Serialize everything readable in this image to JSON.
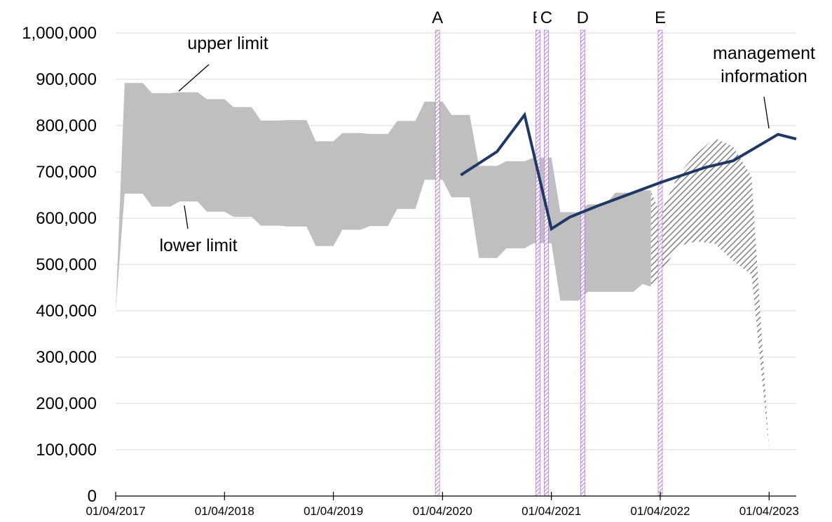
{
  "chart_data": {
    "type": "area",
    "x_axis": {
      "type": "date",
      "range": [
        "2017-04-01",
        "2023-07-01"
      ],
      "tick_labels": [
        "01/04/2017",
        "01/04/2018",
        "01/04/2019",
        "01/04/2020",
        "01/04/2021",
        "01/04/2022",
        "01/04/2023"
      ]
    },
    "y_axis": {
      "range": [
        0,
        1000000
      ],
      "tick_labels": [
        "0",
        "100,000",
        "200,000",
        "300,000",
        "400,000",
        "500,000",
        "600,000",
        "700,000",
        "800,000",
        "900,000",
        "1,000,000"
      ],
      "gridlines": true
    },
    "band": {
      "x": [
        "2017-04-01",
        "2017-05-01",
        "2017-07-01",
        "2017-08-01",
        "2017-10-01",
        "2017-11-01",
        "2018-01-01",
        "2018-02-01",
        "2018-04-01",
        "2018-05-01",
        "2018-07-01",
        "2018-08-01",
        "2018-10-01",
        "2018-11-01",
        "2019-01-01",
        "2019-02-01",
        "2019-04-01",
        "2019-05-01",
        "2019-07-01",
        "2019-08-01",
        "2019-10-01",
        "2019-11-01",
        "2020-01-01",
        "2020-02-01",
        "2020-04-01",
        "2020-05-01",
        "2020-07-01",
        "2020-08-01",
        "2020-10-01",
        "2020-11-01",
        "2021-01-01",
        "2021-02-01",
        "2021-04-01",
        "2021-05-01",
        "2021-07-01",
        "2021-08-01",
        "2021-10-01",
        "2021-11-01",
        "2022-01-01",
        "2022-02-01",
        "2022-03-01"
      ],
      "upper": [
        400000,
        892000,
        892000,
        870000,
        870000,
        872000,
        872000,
        857000,
        857000,
        840000,
        840000,
        811000,
        811000,
        812000,
        812000,
        766000,
        766000,
        784000,
        784000,
        782000,
        782000,
        810000,
        810000,
        852000,
        852000,
        823000,
        823000,
        713000,
        713000,
        723000,
        723000,
        731000,
        731000,
        613000,
        613000,
        630000,
        630000,
        655000,
        655000,
        660000,
        660000
      ],
      "lower": [
        400000,
        653000,
        653000,
        625000,
        625000,
        636000,
        636000,
        614000,
        614000,
        603000,
        603000,
        584000,
        584000,
        582000,
        582000,
        540000,
        540000,
        575000,
        575000,
        583000,
        583000,
        620000,
        620000,
        683000,
        683000,
        645000,
        645000,
        514000,
        514000,
        535000,
        535000,
        546000,
        546000,
        422000,
        422000,
        441000,
        441000,
        441000,
        441000,
        458000,
        452000
      ]
    },
    "hatched_band": {
      "x": [
        "2022-03-01",
        "2022-04-01",
        "2022-06-01",
        "2022-08-01",
        "2022-10-01",
        "2022-12-01",
        "2023-02-01",
        "2023-04-01"
      ],
      "upper": [
        658000,
        610000,
        695000,
        740000,
        773000,
        755000,
        690000,
        100000
      ],
      "lower": [
        452000,
        480000,
        540000,
        550000,
        545000,
        508000,
        478000,
        100000
      ]
    },
    "series": [
      {
        "name": "management information",
        "x": [
          "2020-06-01",
          "2020-10-01",
          "2021-01-01",
          "2021-04-01",
          "2021-06-01",
          "2021-09-01",
          "2022-04-01",
          "2022-09-01",
          "2022-12-01",
          "2023-05-01",
          "2023-07-01"
        ],
        "values": [
          693000,
          744000,
          823000,
          577000,
          602000,
          626000,
          677000,
          710000,
          724000,
          781000,
          771000
        ],
        "color": "#1f3864"
      }
    ],
    "vertical_markers": [
      {
        "label": "A",
        "x": "2020-03-15"
      },
      {
        "label": "B",
        "x": "2021-02-15"
      },
      {
        "label": "C",
        "x": "2021-03-15"
      },
      {
        "label": "D",
        "x": "2021-07-15"
      },
      {
        "label": "E",
        "x": "2022-04-01"
      }
    ],
    "annotations": {
      "upper_limit": "upper limit",
      "lower_limit": "lower limit",
      "management_information": [
        "management",
        "information"
      ]
    },
    "colors": {
      "band": "#bfbfbf",
      "hatch": "#7f7f7f",
      "line": "#1f3864",
      "marker": "#9f62c4",
      "grid": "#d9d9d9"
    }
  }
}
